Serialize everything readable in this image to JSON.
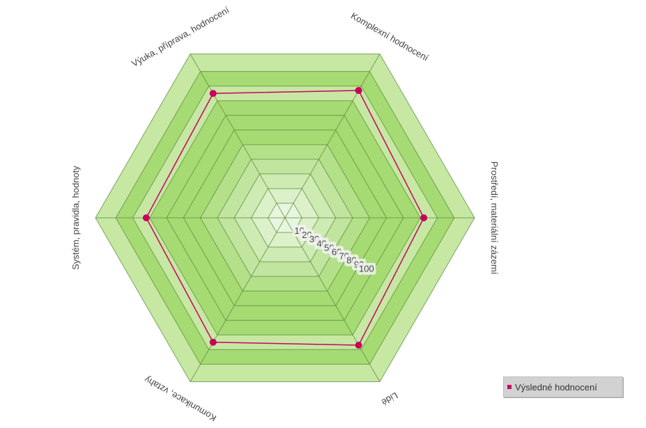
{
  "colors": {
    "series": "#cc0066",
    "point": "#c8005c",
    "grid": "#5a8a3a",
    "band_dark": "#a6da73",
    "band_light": "#c6e8a2",
    "center": "#e9f6df",
    "label_text": "#444444"
  },
  "chart_data": {
    "type": "radar",
    "categories": [
      "Komplexní hodnocení",
      "Prostředí, materiální zázemí",
      "Lidé",
      "Komunikace, vztahy",
      "Systém, pravidla, hodnoty",
      "Výuka, příprava,  hodnocení"
    ],
    "series": [
      {
        "name": "Výsledné hodnocení",
        "values": [
          87,
          82,
          87,
          85,
          82,
          85
        ]
      }
    ],
    "radial_ticks": [
      10,
      20,
      30,
      40,
      50,
      60,
      70,
      80,
      90,
      100
    ],
    "rmax": 112,
    "grid": true,
    "legend_position": "bottom-right"
  }
}
